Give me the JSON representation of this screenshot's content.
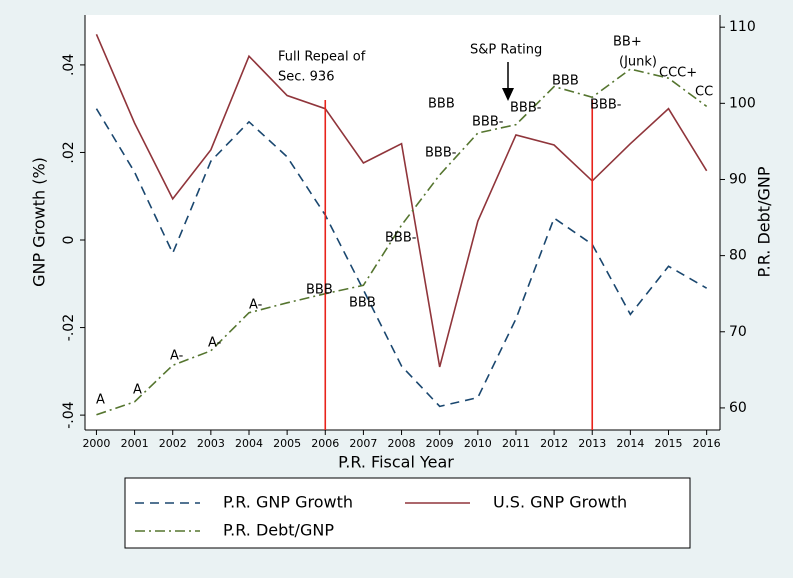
{
  "chart_data": {
    "type": "line",
    "x_label": "P.R. Fiscal Year",
    "y_label": "GNP Growth (%)",
    "y2_label": "P.R. Debt/GNP",
    "x": [
      2000,
      2001,
      2002,
      2003,
      2004,
      2005,
      2006,
      2007,
      2008,
      2009,
      2010,
      2011,
      2012,
      2013,
      2014,
      2015,
      2016
    ],
    "series": [
      {
        "name": "P.R. GNP Growth",
        "color": "#1a476f",
        "dash": "dash",
        "values": [
          0.03,
          0.0155,
          -0.003,
          0.018,
          0.027,
          0.019,
          0.0057,
          -0.0114,
          -0.0288,
          -0.038,
          -0.036,
          -0.018,
          0.005,
          -0.001,
          -0.017,
          -0.006,
          -0.011
        ]
      },
      {
        "name": "U.S. GNP Growth",
        "color": "#90353b",
        "dash": "solid",
        "values": [
          0.047,
          0.0267,
          0.0094,
          0.0206,
          0.042,
          0.033,
          0.03,
          0.0176,
          0.022,
          -0.029,
          0.0043,
          0.024,
          0.0217,
          0.0135,
          0.022,
          0.03,
          0.0158
        ]
      },
      {
        "name": "P.R. Debt/GNP",
        "color": "#55752f",
        "dash": "dashdot",
        "axis": "y2",
        "values": [
          59.1,
          60.8,
          65.6,
          67.5,
          72.5,
          73.8,
          75.0,
          76.1,
          84.0,
          90.6,
          96.1,
          97.2,
          102.2,
          100.8,
          104.5,
          103.3,
          99.6
        ]
      }
    ],
    "xlim": [
      1999.7,
      2016.35
    ],
    "xticks": [
      2000,
      2001,
      2002,
      2003,
      2004,
      2005,
      2006,
      2007,
      2008,
      2009,
      2010,
      2011,
      2012,
      2013,
      2014,
      2015,
      2016
    ],
    "ylim": [
      -0.0434,
      0.0514
    ],
    "yticks": [
      {
        "value": -0.04,
        "label": "-.04"
      },
      {
        "value": -0.02,
        "label": "-.02"
      },
      0,
      {
        "value": 0.02,
        "label": ".02"
      },
      {
        "value": 0.04,
        "label": ".04"
      }
    ],
    "y2lim": [
      57.1,
      111.6
    ],
    "y2ticks": [
      60,
      70,
      80,
      90,
      100,
      110
    ],
    "vlines": [
      2006,
      2013
    ],
    "vline_color": "#e8231b",
    "annotations": [
      "Full Repeal of",
      "Sec. 936",
      "S&P Rating",
      "A",
      "A",
      "A-",
      "A-",
      "A-",
      "BBB",
      "BBB",
      "BBB-",
      "BBB",
      "BBB-",
      "BBB-",
      "BBB-",
      "BBB",
      "BBB-",
      "BB+",
      "(Junk)",
      "CCC+",
      "CC"
    ]
  }
}
